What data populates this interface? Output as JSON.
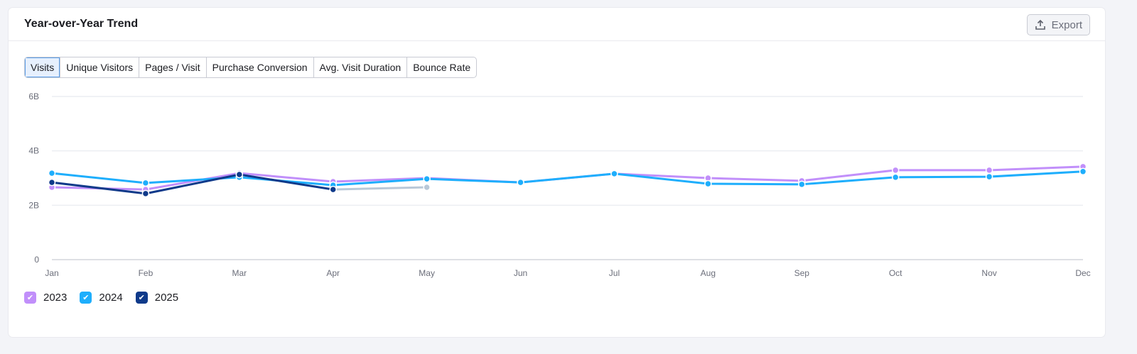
{
  "header": {
    "title": "Year-over-Year Trend",
    "export_label": "Export"
  },
  "tabs": [
    {
      "label": "Visits",
      "active": true
    },
    {
      "label": "Unique Visitors"
    },
    {
      "label": "Pages / Visit"
    },
    {
      "label": "Purchase Conversion"
    },
    {
      "label": "Avg. Visit Duration"
    },
    {
      "label": "Bounce Rate"
    }
  ],
  "chart_data": {
    "type": "line",
    "categories": [
      "Jan",
      "Feb",
      "Mar",
      "Apr",
      "May",
      "Jun",
      "Jul",
      "Aug",
      "Sep",
      "Oct",
      "Nov",
      "Dec"
    ],
    "ylim": [
      0,
      6
    ],
    "yticks": [
      {
        "value": 0,
        "label": "0"
      },
      {
        "value": 2,
        "label": "2B"
      },
      {
        "value": 4,
        "label": "4B"
      },
      {
        "value": 6,
        "label": "6B"
      }
    ],
    "grid": true,
    "legend_position": "bottom-left",
    "series": [
      {
        "name": "2023",
        "color": "#c18ffa",
        "values": [
          2.66,
          2.58,
          3.18,
          2.87,
          3.0,
          2.84,
          3.16,
          3.0,
          2.9,
          3.29,
          3.29,
          3.42
        ]
      },
      {
        "name": "2024",
        "color": "#1eaefc",
        "values": [
          3.18,
          2.82,
          3.03,
          2.74,
          2.97,
          2.84,
          3.16,
          2.79,
          2.77,
          3.03,
          3.05,
          3.24
        ]
      },
      {
        "name": "2025",
        "color": "#0f3a8a",
        "values": [
          2.84,
          2.43,
          3.13,
          2.58,
          null,
          null,
          null,
          null,
          null,
          null,
          null,
          null
        ],
        "partial": {
          "color": "#b9c8d8",
          "from": "Apr",
          "to": "May",
          "values": [
            2.58,
            2.66
          ]
        }
      }
    ]
  }
}
